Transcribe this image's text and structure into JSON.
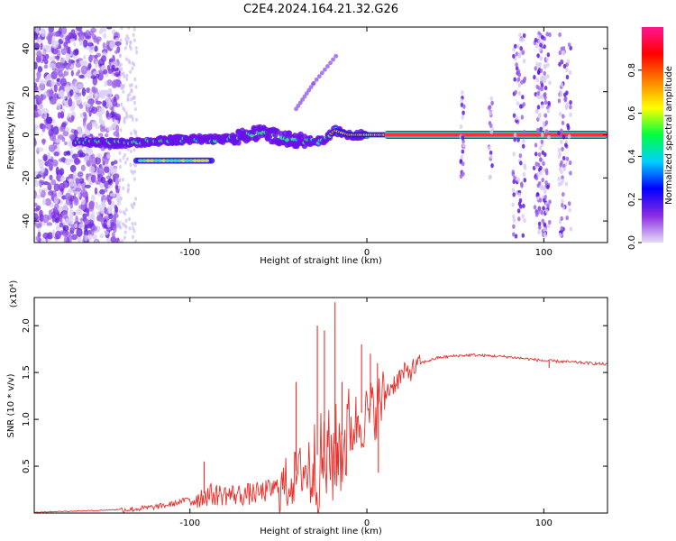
{
  "figure": {
    "title": "C2E4.2024.164.21.32.G26"
  },
  "chart_data": [
    {
      "type": "heatmap",
      "xlabel": "Height of straight line (km)",
      "ylabel": "Frequency (Hz)",
      "xlim": [
        -188,
        136
      ],
      "ylim": [
        -50,
        50
      ],
      "xticks": [
        -100,
        0,
        100
      ],
      "xtick_labels": [
        "-100",
        "0",
        "100"
      ],
      "yticks": [
        -40,
        -20,
        0,
        20,
        40
      ],
      "ytick_labels": [
        "-40",
        "-20",
        "0",
        "20",
        "40"
      ],
      "colorbar": {
        "label": "Normalized spectral amplitude",
        "range": [
          0,
          1
        ],
        "ticks": [
          0.0,
          0.2,
          0.4,
          0.6,
          0.8
        ],
        "tick_labels": [
          "0.0",
          "0.2",
          "0.4",
          "0.6",
          "0.8"
        ],
        "colormap": [
          "#e6dcf8",
          "#8a2be2",
          "#0000ff",
          "#00d0ff",
          "#00ff40",
          "#ffff00",
          "#ff8000",
          "#ff0000",
          "#ff1493"
        ]
      },
      "features": {
        "noise_region_x": [
          -188,
          -140
        ],
        "scatter_band_x": [
          -140,
          -130
        ],
        "low_band": {
          "x": [
            -130,
            -88
          ],
          "freq": -12
        },
        "rising_band": [
          [
            -165,
            -3
          ],
          [
            -140,
            -4
          ],
          [
            -120,
            -3
          ],
          [
            -100,
            -2
          ],
          [
            -80,
            -2
          ],
          [
            -60,
            1
          ],
          [
            -45,
            -2
          ],
          [
            -35,
            -3
          ],
          [
            -25,
            -3
          ],
          [
            -18,
            2
          ],
          [
            -10,
            0
          ],
          [
            0,
            0
          ]
        ],
        "diagonal_band": [
          [
            -40,
            12
          ],
          [
            -30,
            24
          ],
          [
            -17,
            37
          ]
        ],
        "carrier": {
          "x": [
            10,
            136
          ],
          "freq": 0
        },
        "vertical_streaks_x": [
          54,
          70,
          86,
          98,
          100,
          112
        ]
      }
    },
    {
      "type": "line",
      "xlabel": "Height of straight line (km)",
      "ylabel": "SNR (10 * v/v)",
      "scale_note": "(x10⁴)",
      "xlim": [
        -188,
        136
      ],
      "ylim": [
        0,
        2.3
      ],
      "xticks": [
        -100,
        0,
        100
      ],
      "xtick_labels": [
        "-100",
        "0",
        "100"
      ],
      "yticks": [
        0.5,
        1.0,
        1.5,
        2.0
      ],
      "ytick_labels": [
        "0.5",
        "1.0",
        "1.5",
        "2.0"
      ],
      "color": "#e8302b",
      "x": [
        -188,
        -170,
        -150,
        -140,
        -130,
        -120,
        -110,
        -100,
        -90,
        -80,
        -70,
        -60,
        -50,
        -40,
        -35,
        -30,
        -25,
        -20,
        -15,
        -10,
        -5,
        0,
        5,
        10,
        15,
        20,
        25,
        30,
        40,
        50,
        60,
        70,
        80,
        90,
        100,
        110,
        120,
        136
      ],
      "y": [
        0.01,
        0.02,
        0.03,
        0.04,
        0.05,
        0.07,
        0.1,
        0.16,
        0.22,
        0.22,
        0.22,
        0.24,
        0.3,
        0.45,
        0.55,
        0.6,
        0.65,
        0.7,
        0.8,
        0.95,
        1.05,
        1.1,
        1.2,
        1.3,
        1.4,
        1.5,
        1.55,
        1.6,
        1.66,
        1.68,
        1.69,
        1.68,
        1.67,
        1.65,
        1.63,
        1.62,
        1.61,
        1.59
      ],
      "spikes": [
        {
          "x": -92,
          "y": 0.55
        },
        {
          "x": -40,
          "y": 1.4
        },
        {
          "x": -28,
          "y": 2.0
        },
        {
          "x": -24,
          "y": 1.95
        },
        {
          "x": -18,
          "y": 2.25
        },
        {
          "x": -14,
          "y": 1.4
        },
        {
          "x": -3,
          "y": 1.8
        },
        {
          "x": 6,
          "y": 1.6
        },
        {
          "x": 6.5,
          "y": 0.43
        },
        {
          "x": 2,
          "y": 1.7
        },
        {
          "x": 103,
          "y": 1.55
        }
      ]
    }
  ]
}
